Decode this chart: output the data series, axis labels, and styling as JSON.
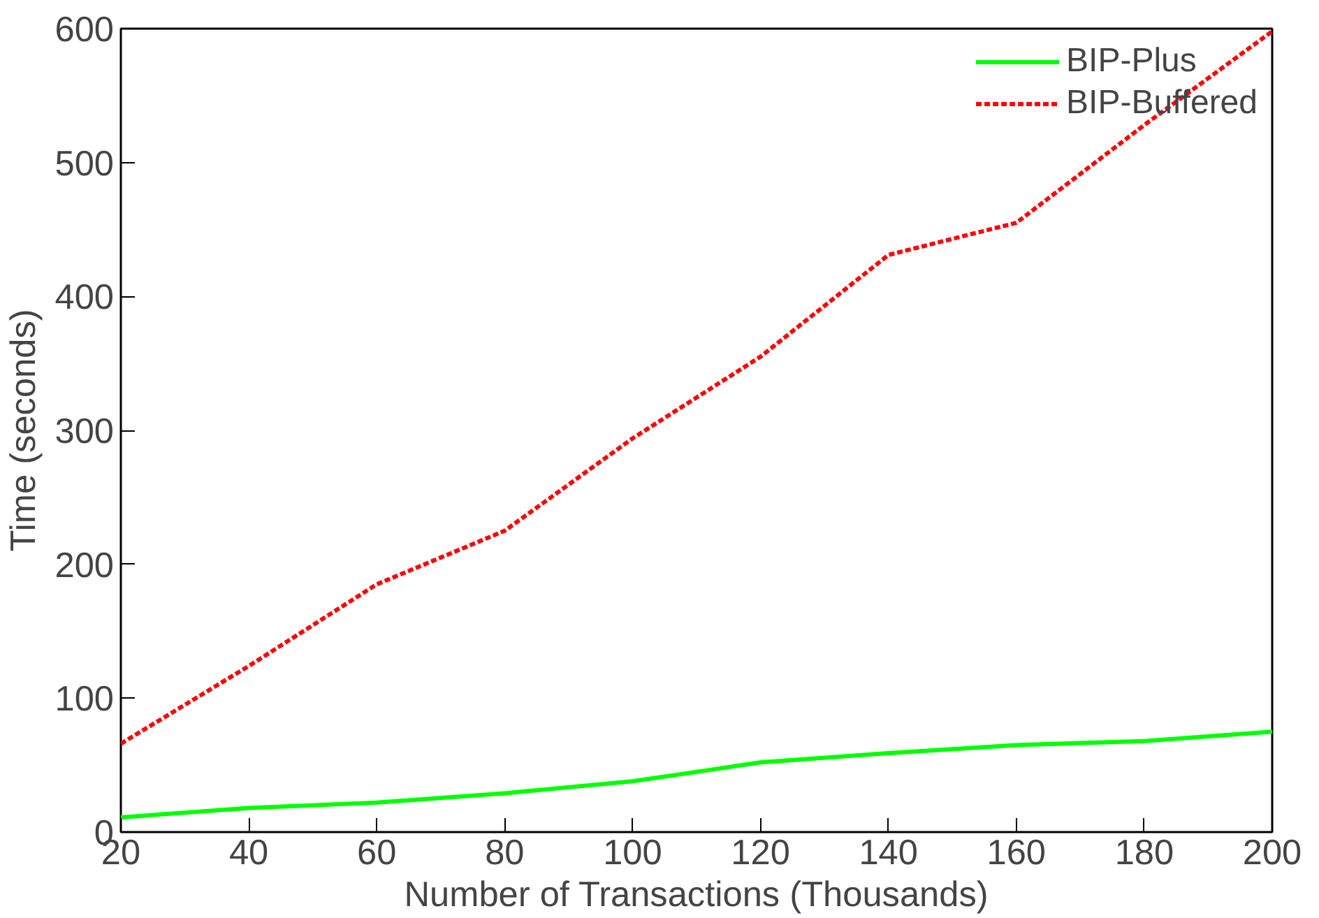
{
  "chart_data": {
    "type": "line",
    "xlabel": "Number of Transactions (Thousands)",
    "ylabel": "Time (seconds)",
    "x": [
      20,
      40,
      60,
      80,
      100,
      120,
      140,
      160,
      180,
      200
    ],
    "series": [
      {
        "name": "BIP-Plus",
        "color": "#00ff00",
        "line_style": "solid",
        "values": [
          11,
          18,
          22,
          29,
          38,
          52,
          59,
          65,
          68,
          75
        ]
      },
      {
        "name": "BIP-Buffered",
        "color": "#ff0000",
        "line_style": "dashed",
        "values": [
          66,
          124,
          185,
          225,
          294,
          355,
          431,
          455,
          528,
          598
        ]
      }
    ],
    "xlim": [
      20,
      200
    ],
    "xticks": [
      20,
      40,
      60,
      80,
      100,
      120,
      140,
      160,
      180,
      200
    ],
    "ylim": [
      0,
      600
    ],
    "yticks": [
      0,
      100,
      200,
      300,
      400,
      500,
      600
    ],
    "grid": false,
    "legend": "top right",
    "marker": "none"
  }
}
